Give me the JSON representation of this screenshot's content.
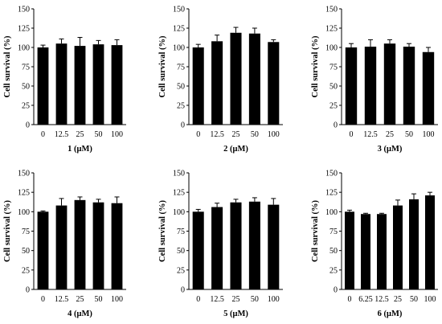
{
  "chart_data": [
    {
      "type": "bar",
      "categories": [
        "0",
        "12.5",
        "25",
        "50",
        "100"
      ],
      "values": [
        100,
        105,
        102,
        104,
        103
      ],
      "errors": [
        3,
        6,
        11,
        5,
        7
      ],
      "xlabel": "1 (μM)",
      "ylabel": "Cell survival (%)",
      "ylim": [
        0,
        150
      ],
      "yticks": [
        "0",
        "25",
        "50",
        "75",
        "100",
        "125",
        "150"
      ],
      "bar_color": "#000000",
      "grid": false
    },
    {
      "type": "bar",
      "categories": [
        "0",
        "12.5",
        "25",
        "50",
        "100"
      ],
      "values": [
        100,
        108,
        119,
        118,
        107
      ],
      "errors": [
        4,
        8,
        7,
        7,
        3
      ],
      "xlabel": "2 (μM)",
      "ylabel": "Cell survival (%)",
      "ylim": [
        0,
        150
      ],
      "yticks": [
        "0",
        "25",
        "50",
        "75",
        "100",
        "125",
        "150"
      ],
      "bar_color": "#000000",
      "grid": false
    },
    {
      "type": "bar",
      "categories": [
        "0",
        "12.5",
        "25",
        "50",
        "100"
      ],
      "values": [
        100,
        101,
        105,
        101,
        94
      ],
      "errors": [
        5,
        9,
        5,
        4,
        6
      ],
      "xlabel": "3 (μM)",
      "ylabel": "Cell survival (%)",
      "ylim": [
        0,
        150
      ],
      "yticks": [
        "0",
        "25",
        "50",
        "75",
        "100",
        "125",
        "150"
      ],
      "bar_color": "#000000",
      "grid": false
    },
    {
      "type": "bar",
      "categories": [
        "0",
        "12.5",
        "25",
        "50",
        "100"
      ],
      "values": [
        100,
        108,
        115,
        112,
        111
      ],
      "errors": [
        1,
        9,
        4,
        4,
        8
      ],
      "xlabel": "4 (μM)",
      "ylabel": "Cell survival (%)",
      "ylim": [
        0,
        150
      ],
      "yticks": [
        "0",
        "25",
        "50",
        "75",
        "100",
        "125",
        "150"
      ],
      "bar_color": "#000000",
      "grid": false
    },
    {
      "type": "bar",
      "categories": [
        "0",
        "12.5",
        "25",
        "50",
        "100"
      ],
      "values": [
        100,
        106,
        112,
        113,
        109
      ],
      "errors": [
        3,
        5,
        4,
        5,
        8
      ],
      "xlabel": "5 (μM)",
      "ylabel": "Cell survival (%)",
      "ylim": [
        0,
        150
      ],
      "yticks": [
        "0",
        "25",
        "50",
        "75",
        "100",
        "125",
        "150"
      ],
      "bar_color": "#000000",
      "grid": false
    },
    {
      "type": "bar",
      "categories": [
        "0",
        "6.25",
        "12.5",
        "25",
        "50",
        "100"
      ],
      "values": [
        100,
        97,
        97,
        108,
        116,
        121
      ],
      "errors": [
        2,
        1,
        1,
        7,
        7,
        4
      ],
      "xlabel": "6 (μM)",
      "ylabel": "Cell survival (%)",
      "ylim": [
        0,
        150
      ],
      "yticks": [
        "0",
        "25",
        "50",
        "75",
        "100",
        "125",
        "150"
      ],
      "bar_color": "#000000",
      "grid": false
    }
  ]
}
